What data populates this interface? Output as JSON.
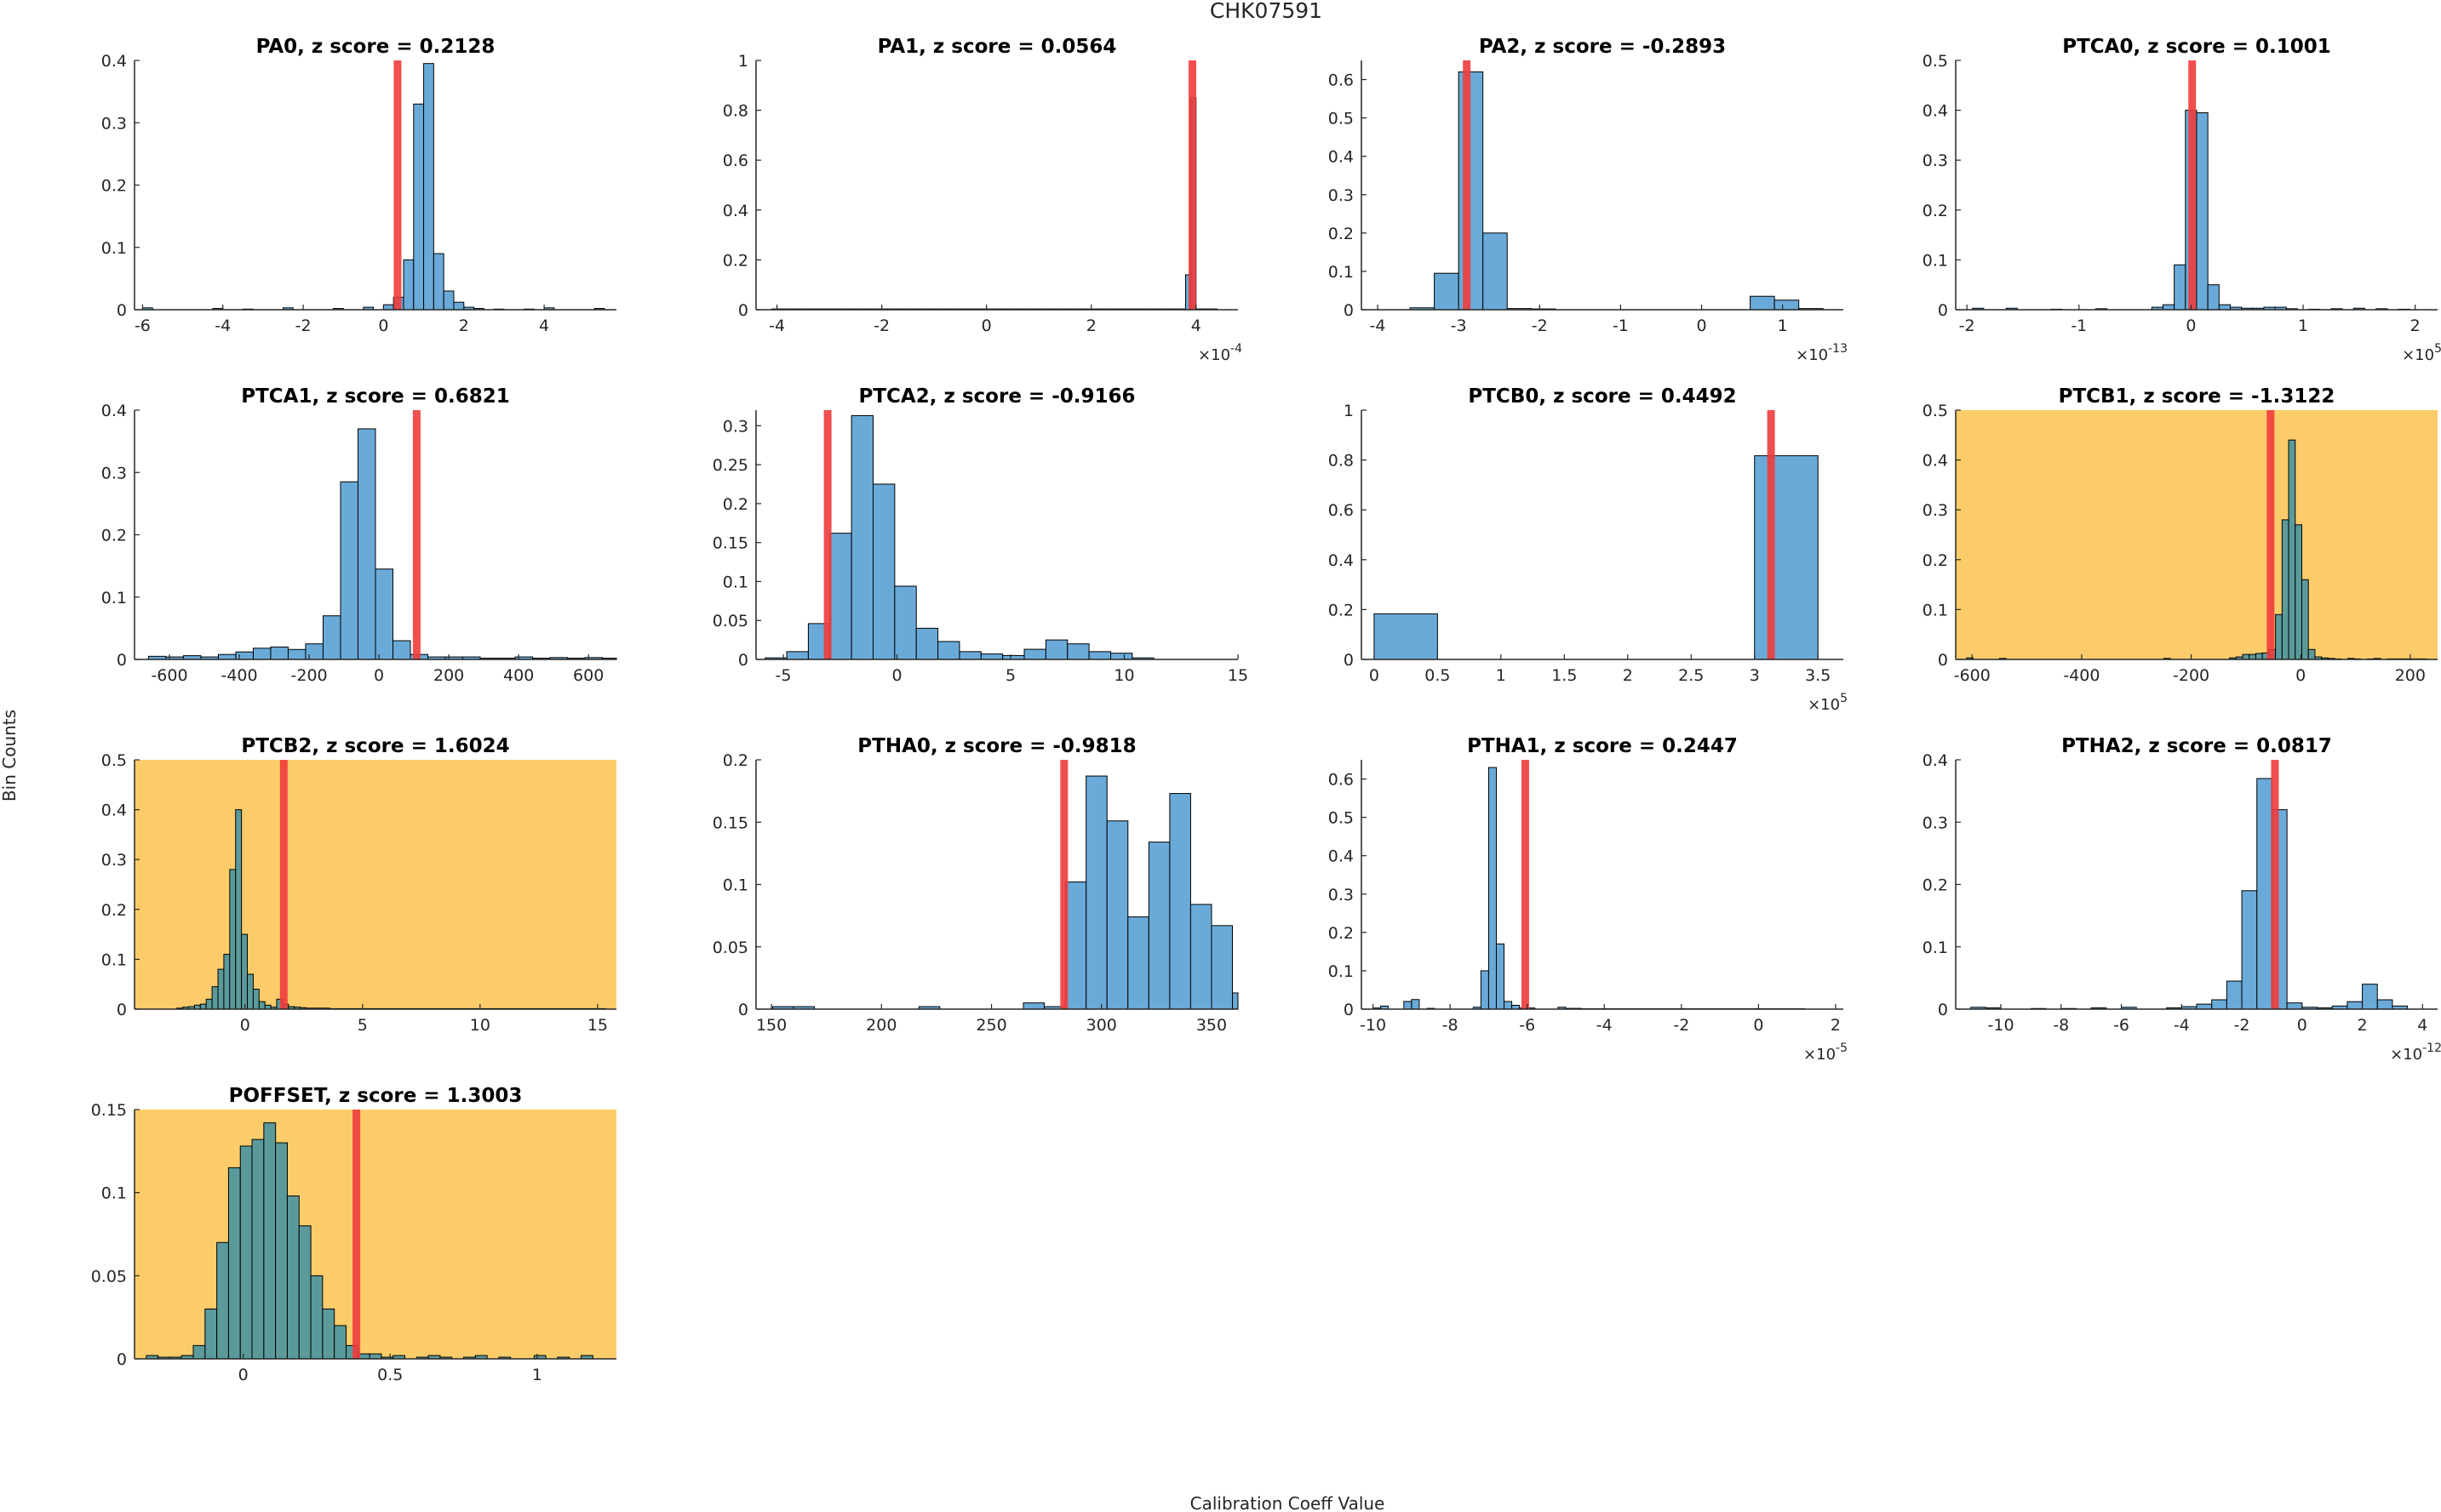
{
  "figure": {
    "title": "CHK07591",
    "xlabel": "Calibration Coeff Value",
    "ylabel": "Bin Counts",
    "highlight_color": "#FDCC6A",
    "bar_color": "#6AAAD8",
    "bar_color_on_highlight": "#5B9A9B",
    "marker_color": "#F03C3C"
  },
  "chart_data": [
    {
      "type": "bar",
      "title": "PA0, z score = 0.2128",
      "highlight": false,
      "xlim": [
        -6.2,
        5.8
      ],
      "ylim": [
        0,
        0.4
      ],
      "xticks": [
        -6,
        -4,
        -2,
        0,
        2,
        4
      ],
      "xtick_labels": [
        "-6",
        "-4",
        "-2",
        "0",
        "2",
        "4"
      ],
      "yticks": [
        0,
        0.1,
        0.2,
        0.3,
        0.4
      ],
      "ytick_labels": [
        "0",
        "0.1",
        "0.2",
        "0.3",
        "0.4"
      ],
      "exponent": null,
      "marker": 0.35,
      "bins": {
        "start": -6.0,
        "width": 0.25,
        "values": [
          0.003,
          0,
          0,
          0,
          0,
          0,
          0,
          0.002,
          0,
          0,
          0.001,
          0,
          0,
          0,
          0.003,
          0,
          0,
          0,
          0,
          0.002,
          0,
          0,
          0.004,
          0,
          0.008,
          0.02,
          0.08,
          0.33,
          0.395,
          0.09,
          0.03,
          0.012,
          0.004,
          0.002,
          0,
          0.001,
          0,
          0,
          0.001,
          0,
          0.003,
          0,
          0,
          0,
          0,
          0.002
        ]
      }
    },
    {
      "type": "bar",
      "title": "PA1, z score = 0.0564",
      "highlight": false,
      "xlim": [
        -4.4,
        4.8
      ],
      "ylim": [
        0,
        1
      ],
      "xticks": [
        -4,
        -2,
        0,
        2,
        4
      ],
      "xtick_labels": [
        "-4",
        "-2",
        "0",
        "2",
        "4"
      ],
      "yticks": [
        0,
        0.2,
        0.4,
        0.6,
        0.8,
        1
      ],
      "ytick_labels": [
        "0",
        "0.2",
        "0.4",
        "0.6",
        "0.8",
        "1"
      ],
      "exponent": "-4",
      "marker": 3.93,
      "bins": {
        "start": -4.1,
        "width": 0.1,
        "values": [
          0.003,
          0.003,
          0.003,
          0.003,
          0.003,
          0.003,
          0.003,
          0.003,
          0.003,
          0.003,
          0.003,
          0.003,
          0.003,
          0.003,
          0.003,
          0.003,
          0.003,
          0.003,
          0.003,
          0.003,
          0.003,
          0.003,
          0.003,
          0.003,
          0.003,
          0.003,
          0.003,
          0.003,
          0.003,
          0.003,
          0.003,
          0.003,
          0.003,
          0.003,
          0.003,
          0.003,
          0.003,
          0.003,
          0.003,
          0.003,
          0.003,
          0.003,
          0.003,
          0.003,
          0.003,
          0.003,
          0.003,
          0.003,
          0.003,
          0.003,
          0.003,
          0.003,
          0.003,
          0.003,
          0.003,
          0.003,
          0.003,
          0.003,
          0.003,
          0.003,
          0.003,
          0.003,
          0.003,
          0.003,
          0.003,
          0.003,
          0.003,
          0.003,
          0.003,
          0.003,
          0.003,
          0.003,
          0.003,
          0.003,
          0.003,
          0.003,
          0.003,
          0.003,
          0.003,
          0.14,
          0.85,
          0.003,
          0.003,
          0.003,
          0.003
        ]
      }
    },
    {
      "type": "bar",
      "title": "PA2, z score = -0.2893",
      "highlight": false,
      "xlim": [
        -4.2,
        1.75
      ],
      "ylim": [
        0,
        0.65
      ],
      "xticks": [
        -4,
        -3,
        -2,
        -1,
        0,
        1
      ],
      "xtick_labels": [
        "-4",
        "-3",
        "-2",
        "-1",
        "0",
        "1"
      ],
      "yticks": [
        0,
        0.1,
        0.2,
        0.3,
        0.4,
        0.5,
        0.6
      ],
      "ytick_labels": [
        "0",
        "0.1",
        "0.2",
        "0.3",
        "0.4",
        "0.5",
        "0.6"
      ],
      "exponent": "-13",
      "marker": -2.9,
      "bins": {
        "start": -3.6,
        "width": 0.3,
        "values": [
          0.005,
          0.095,
          0.62,
          0.2,
          0.003,
          0.002,
          0,
          0,
          0,
          0,
          0,
          0,
          0,
          0,
          0.035,
          0.025,
          0.003
        ]
      }
    },
    {
      "type": "bar",
      "title": "PTCA0, z score = 0.1001",
      "highlight": false,
      "xlim": [
        -2.1,
        2.2
      ],
      "ylim": [
        0,
        0.5
      ],
      "xticks": [
        -2,
        -1,
        0,
        1,
        2
      ],
      "xtick_labels": [
        "-2",
        "-1",
        "0",
        "1",
        "2"
      ],
      "yticks": [
        0,
        0.1,
        0.2,
        0.3,
        0.4,
        0.5
      ],
      "ytick_labels": [
        "0",
        "0.1",
        "0.2",
        "0.3",
        "0.4",
        "0.5"
      ],
      "exponent": "5",
      "marker": 0.01,
      "bins": {
        "start": -1.95,
        "width": 0.1,
        "values": [
          0.003,
          0,
          0,
          0.003,
          0,
          0,
          0,
          0.001,
          0,
          0,
          0,
          0.002,
          0,
          0,
          0,
          0,
          0.005,
          0.01,
          0.09,
          0.4,
          0.395,
          0.05,
          0.01,
          0.005,
          0.003,
          0.003,
          0.005,
          0.005,
          0.002,
          0,
          0.001,
          0,
          0.002,
          0,
          0.003,
          0,
          0.002,
          0,
          0.001
        ]
      }
    },
    {
      "type": "bar",
      "title": "PTCA1, z score = 0.6821",
      "highlight": false,
      "xlim": [
        -700,
        680
      ],
      "ylim": [
        0,
        0.4
      ],
      "xticks": [
        -600,
        -400,
        -200,
        0,
        200,
        400,
        600
      ],
      "xtick_labels": [
        "-600",
        "-400",
        "-200",
        "0",
        "200",
        "400",
        "600"
      ],
      "yticks": [
        0,
        0.1,
        0.2,
        0.3,
        0.4
      ],
      "ytick_labels": [
        "0",
        "0.1",
        "0.2",
        "0.3",
        "0.4"
      ],
      "exponent": null,
      "marker": 108,
      "bins": {
        "start": -660,
        "width": 50,
        "values": [
          0.005,
          0.004,
          0.006,
          0.004,
          0.008,
          0.012,
          0.018,
          0.02,
          0.016,
          0.025,
          0.07,
          0.285,
          0.37,
          0.145,
          0.03,
          0.008,
          0.004,
          0.004,
          0.004,
          0.002,
          0.002,
          0.004,
          0.002,
          0.003,
          0.002,
          0.003,
          0.002
        ]
      }
    },
    {
      "type": "bar",
      "title": "PTCA2, z score = -0.9166",
      "highlight": false,
      "xlim": [
        -6.2,
        15
      ],
      "ylim": [
        0,
        0.32
      ],
      "xticks": [
        -5,
        0,
        5,
        10,
        15
      ],
      "xtick_labels": [
        "-5",
        "0",
        "5",
        "10",
        "15"
      ],
      "yticks": [
        0,
        0.05,
        0.1,
        0.15,
        0.2,
        0.25,
        0.3
      ],
      "ytick_labels": [
        "0",
        "0.05",
        "0.1",
        "0.15",
        "0.2",
        "0.25",
        "0.3"
      ],
      "exponent": null,
      "marker": -3.05,
      "bins": {
        "start": -5.8,
        "width": 0.95,
        "values": [
          0.002,
          0.01,
          0.046,
          0.162,
          0.313,
          0.225,
          0.094,
          0.04,
          0.023,
          0.01,
          0.007,
          0.005,
          0.013,
          0.025,
          0.02,
          0.01,
          0.008,
          0.002
        ]
      }
    },
    {
      "type": "bar",
      "title": "PTCB0, z score = 0.4492",
      "highlight": false,
      "xlim": [
        -0.1,
        3.7
      ],
      "ylim": [
        0,
        1
      ],
      "xticks": [
        0,
        0.5,
        1,
        1.5,
        2,
        2.5,
        3,
        3.5
      ],
      "xtick_labels": [
        "0",
        "0.5",
        "1",
        "1.5",
        "2",
        "2.5",
        "3",
        "3.5"
      ],
      "yticks": [
        0,
        0.2,
        0.4,
        0.6,
        0.8,
        1
      ],
      "ytick_labels": [
        "0",
        "0.2",
        "0.4",
        "0.6",
        "0.8",
        "1"
      ],
      "exponent": "5",
      "marker": 3.13,
      "bins": {
        "start": 0,
        "width": 0.5,
        "values": [
          0.183,
          0,
          0,
          0,
          0,
          0,
          0.817
        ]
      }
    },
    {
      "type": "bar",
      "title": "PTCB1, z score = -1.3122",
      "highlight": true,
      "xlim": [
        -630,
        250
      ],
      "ylim": [
        0,
        0.5
      ],
      "xticks": [
        -600,
        -400,
        -200,
        0,
        200
      ],
      "xtick_labels": [
        "-600",
        "-400",
        "-200",
        "0",
        "200"
      ],
      "yticks": [
        0,
        0.1,
        0.2,
        0.3,
        0.4,
        0.5
      ],
      "ytick_labels": [
        "0",
        "0.1",
        "0.2",
        "0.3",
        "0.4",
        "0.5"
      ],
      "exponent": null,
      "marker": -55,
      "bins": {
        "start": -610,
        "width": 12,
        "values": [
          0.003,
          0,
          0,
          0,
          0,
          0.002,
          0,
          0,
          0,
          0,
          0,
          0,
          0,
          0,
          0,
          0,
          0,
          0,
          0,
          0,
          0,
          0,
          0,
          0,
          0,
          0,
          0,
          0,
          0,
          0,
          0.002,
          0,
          0,
          0,
          0,
          0,
          0,
          0,
          0,
          0,
          0.003,
          0.005,
          0.01,
          0.01,
          0.012,
          0.013,
          0.02,
          0.09,
          0.28,
          0.44,
          0.27,
          0.16,
          0.02,
          0.005,
          0.003,
          0.002,
          0.001,
          0,
          0.002,
          0.001,
          0,
          0.001,
          0.002,
          0,
          0.001,
          0.001,
          0.001,
          0.001,
          0.001,
          0.001
        ]
      }
    },
    {
      "type": "bar",
      "title": "PTCB2, z score = 1.6024",
      "highlight": true,
      "xlim": [
        -4.7,
        15.8
      ],
      "ylim": [
        0,
        0.5
      ],
      "xticks": [
        0,
        5,
        10,
        15
      ],
      "xtick_labels": [
        "0",
        "5",
        "10",
        "15"
      ],
      "yticks": [
        0,
        0.1,
        0.2,
        0.3,
        0.4,
        0.5
      ],
      "ytick_labels": [
        "0",
        "0.1",
        "0.2",
        "0.3",
        "0.4",
        "0.5"
      ],
      "exponent": null,
      "marker": 1.65,
      "bins": {
        "start": -2.9,
        "width": 0.25,
        "values": [
          0.002,
          0.004,
          0.005,
          0.008,
          0.01,
          0.02,
          0.045,
          0.08,
          0.11,
          0.28,
          0.4,
          0.15,
          0.07,
          0.04,
          0.015,
          0.008,
          0.004,
          0.02,
          0.01,
          0.005,
          0.004,
          0.003,
          0.002,
          0.002,
          0.002,
          0.002,
          0.001,
          0.001,
          0.001,
          0.001,
          0.001,
          0.001,
          0.001,
          0.001,
          0.001,
          0.001,
          0.001,
          0.001,
          0.001,
          0.001,
          0.001,
          0.001,
          0.001,
          0.001,
          0.001,
          0.001,
          0.001,
          0.001,
          0.001,
          0.001,
          0.001,
          0.001,
          0.001,
          0.001,
          0.001,
          0.001,
          0.001,
          0.001,
          0.001,
          0.001,
          0.001,
          0.001,
          0.001,
          0.001,
          0.001,
          0.001,
          0.001,
          0.001,
          0.001,
          0.001,
          0.001,
          0.001,
          0.001
        ]
      }
    },
    {
      "type": "bar",
      "title": "PTHA0, z score = -0.9818",
      "highlight": false,
      "xlim": [
        143,
        362
      ],
      "ylim": [
        0,
        0.2
      ],
      "xticks": [
        150,
        200,
        250,
        300,
        350
      ],
      "xtick_labels": [
        "150",
        "200",
        "250",
        "300",
        "350"
      ],
      "yticks": [
        0,
        0.05,
        0.1,
        0.15,
        0.2
      ],
      "ytick_labels": [
        "0",
        "0.05",
        "0.1",
        "0.15",
        "0.2"
      ],
      "exponent": null,
      "marker": 283,
      "bins": {
        "start": 150.5,
        "width": 9.5,
        "values": [
          0.002,
          0.002,
          0,
          0,
          0,
          0,
          0,
          0.002,
          0,
          0,
          0,
          0,
          0.005,
          0.002,
          0.102,
          0.187,
          0.151,
          0.074,
          0.134,
          0.173,
          0.084,
          0.067,
          0.013
        ]
      }
    },
    {
      "type": "bar",
      "title": "PTHA1, z score = 0.2447",
      "highlight": false,
      "xlim": [
        -10.3,
        2.2
      ],
      "ylim": [
        0,
        0.65
      ],
      "xticks": [
        -10,
        -8,
        -6,
        -4,
        -2,
        0,
        2
      ],
      "xtick_labels": [
        "-10",
        "-8",
        "-6",
        "-4",
        "-2",
        "0",
        "2"
      ],
      "yticks": [
        0,
        0.1,
        0.2,
        0.3,
        0.4,
        0.5,
        0.6
      ],
      "ytick_labels": [
        "0",
        "0.1",
        "0.2",
        "0.3",
        "0.4",
        "0.5",
        "0.6"
      ],
      "exponent": "-5",
      "marker": -6.05,
      "bins": {
        "start": -10,
        "width": 0.2,
        "values": [
          0.003,
          0.008,
          0,
          0,
          0.02,
          0.025,
          0,
          0.002,
          0,
          0,
          0,
          0,
          0,
          0.005,
          0.1,
          0.63,
          0.17,
          0.02,
          0.01,
          0.003,
          0.003,
          0,
          0,
          0,
          0.005,
          0.002,
          0.002,
          0.001,
          0.001,
          0.001,
          0.001,
          0.001,
          0.001,
          0.001,
          0.001,
          0.001,
          0.001,
          0.001,
          0.001,
          0.001,
          0.001,
          0.001,
          0.001,
          0.001,
          0.001,
          0.001,
          0.001,
          0.001,
          0.001,
          0.001,
          0.001,
          0.001,
          0.001,
          0.001,
          0.001,
          0.001
        ]
      }
    },
    {
      "type": "bar",
      "title": "PTHA2, z score = 0.0817",
      "highlight": false,
      "xlim": [
        -11.5,
        4.5
      ],
      "ylim": [
        0,
        0.4
      ],
      "xticks": [
        -10,
        -8,
        -6,
        -4,
        -2,
        0,
        2,
        4
      ],
      "xtick_labels": [
        "-10",
        "-8",
        "-6",
        "-4",
        "-2",
        "0",
        "2",
        "4"
      ],
      "yticks": [
        0,
        0.1,
        0.2,
        0.3,
        0.4
      ],
      "ytick_labels": [
        "0",
        "0.1",
        "0.2",
        "0.3",
        "0.4"
      ],
      "exponent": "-12",
      "marker": -0.9,
      "bins": {
        "start": -11,
        "width": 0.5,
        "values": [
          0.003,
          0.002,
          0,
          0,
          0.001,
          0,
          0.001,
          0,
          0.002,
          0,
          0.003,
          0,
          0,
          0.002,
          0.004,
          0.008,
          0.015,
          0.045,
          0.19,
          0.37,
          0.32,
          0.01,
          0.003,
          0.002,
          0.005,
          0.012,
          0.04,
          0.015,
          0.005
        ]
      }
    },
    {
      "type": "bar",
      "title": "POFFSET, z score = 1.3003",
      "highlight": true,
      "xlim": [
        -0.37,
        1.27
      ],
      "ylim": [
        0,
        0.15
      ],
      "xticks": [
        0,
        0.5,
        1
      ],
      "xtick_labels": [
        "0",
        "0.5",
        "1"
      ],
      "yticks": [
        0,
        0.05,
        0.1,
        0.15
      ],
      "ytick_labels": [
        "0",
        "0.05",
        "0.1",
        "0.15"
      ],
      "exponent": null,
      "marker": 0.385,
      "bins": {
        "start": -0.33,
        "width": 0.04,
        "values": [
          0.002,
          0.001,
          0.001,
          0.002,
          0.008,
          0.03,
          0.07,
          0.115,
          0.128,
          0.132,
          0.142,
          0.13,
          0.098,
          0.08,
          0.05,
          0.03,
          0.02,
          0.008,
          0.003,
          0.003,
          0.001,
          0.002,
          0,
          0.001,
          0.002,
          0.001,
          0,
          0.001,
          0.002,
          0,
          0.001,
          0,
          0,
          0.002,
          0,
          0.001,
          0,
          0.002
        ]
      }
    }
  ]
}
